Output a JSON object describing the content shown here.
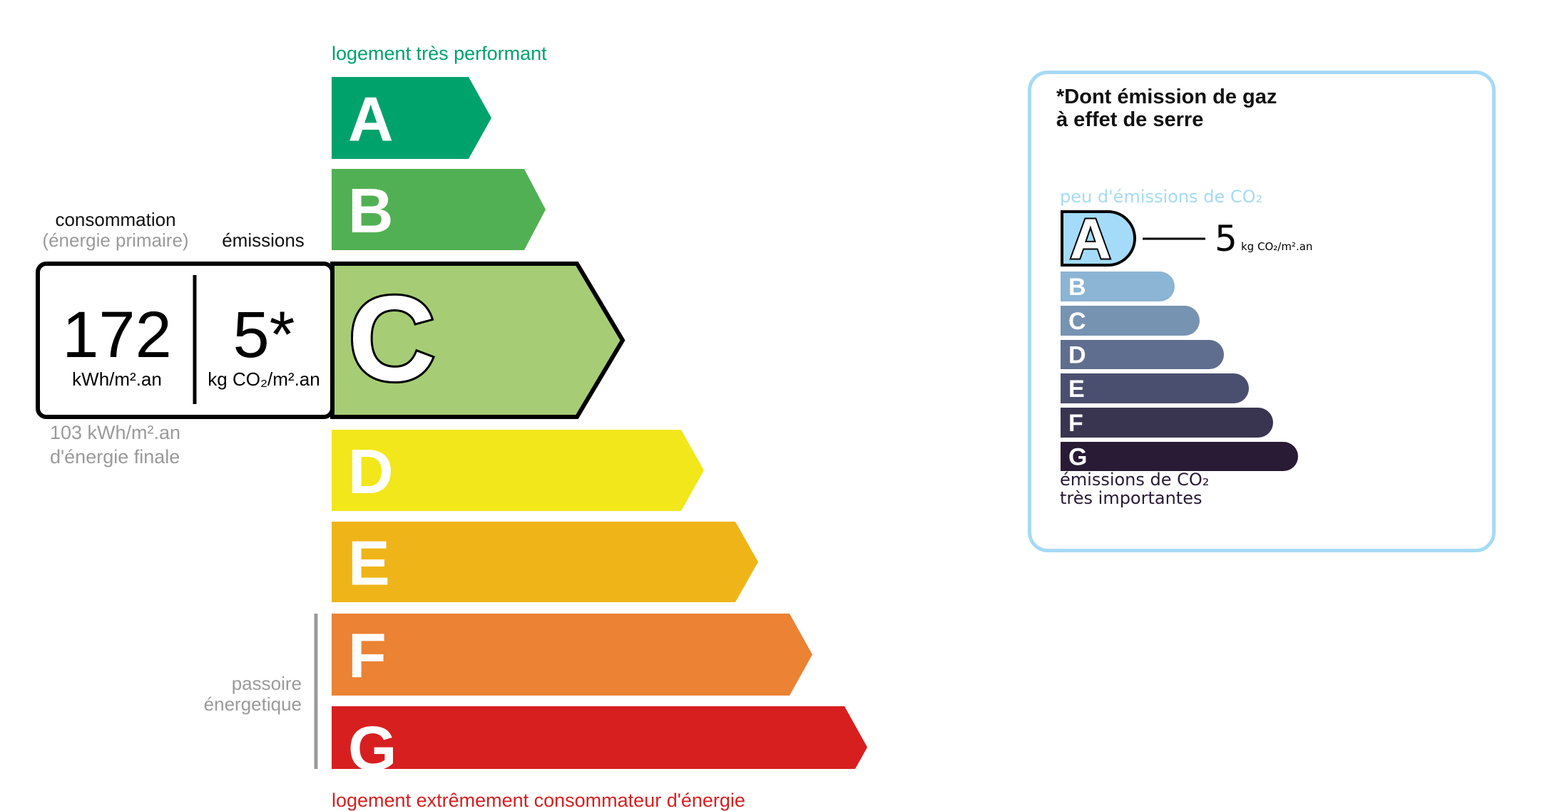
{
  "energy": {
    "top_label": "logement très performant",
    "bottom_label": "logement extrêmement consommateur d'énergie",
    "passoire_line1": "passoire",
    "passoire_line2": "énergetique",
    "consumption_label": "consommation",
    "consumption_sub": "(énergie primaire)",
    "emissions_label": "émissions",
    "consumption_value": "172",
    "consumption_unit": "kWh/m².an",
    "emissions_value": "5*",
    "emissions_unit": "kg CO₂/m².an",
    "final_energy_line1": "103 kWh/m².an",
    "final_energy_line2": "d'énergie finale",
    "current_class": "C",
    "classes": [
      {
        "letter": "A",
        "color": "#00a26b"
      },
      {
        "letter": "B",
        "color": "#52b054"
      },
      {
        "letter": "C",
        "color": "#a6cd75"
      },
      {
        "letter": "D",
        "color": "#f2e71a"
      },
      {
        "letter": "E",
        "color": "#efb518"
      },
      {
        "letter": "F",
        "color": "#eb8234"
      },
      {
        "letter": "G",
        "color": "#d71f20"
      }
    ],
    "top_label_color": "#00a26b",
    "bottom_label_color": "#d71f20"
  },
  "ghg": {
    "title_line1": "*Dont émission de gaz",
    "title_line2": "à effet de serre",
    "top_label": "peu d'émissions de CO₂",
    "bottom_line1": "émissions de CO₂",
    "bottom_line2": "très importantes",
    "value": "5",
    "unit": "kg CO₂/m².an",
    "current_class": "A",
    "border_color": "#a5daf6",
    "classes": [
      {
        "letter": "A",
        "color": "#a4dbf8"
      },
      {
        "letter": "B",
        "color": "#8cb4d4"
      },
      {
        "letter": "C",
        "color": "#7793b2"
      },
      {
        "letter": "D",
        "color": "#5f6e8e"
      },
      {
        "letter": "E",
        "color": "#4b4f6f"
      },
      {
        "letter": "F",
        "color": "#393551"
      },
      {
        "letter": "G",
        "color": "#291b35"
      }
    ]
  }
}
